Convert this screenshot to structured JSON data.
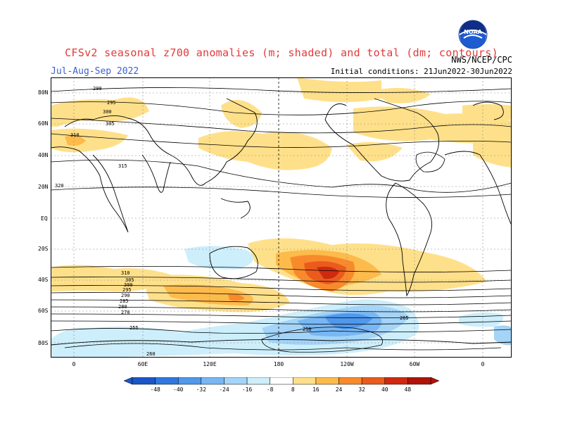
{
  "title": "CFSv2 seasonal z700 anomalies (m; shaded) and total (dm; contours)",
  "agency": "NWS/NCEP/CPC",
  "season": "Jul-Aug-Sep 2022",
  "initial_conditions": "Initial conditions: 21Jun2022-30Jun2022",
  "logo_text": "NOAA",
  "lat_labels": [
    "80N",
    "60N",
    "40N",
    "20N",
    "EQ",
    "20S",
    "40S",
    "60S",
    "80S"
  ],
  "lon_labels": [
    "0",
    "60E",
    "120E",
    "180",
    "120W",
    "60W",
    "0"
  ],
  "colorbar": {
    "labels": [
      "-48",
      "-40",
      "-32",
      "-24",
      "-16",
      "-8",
      "8",
      "16",
      "24",
      "32",
      "40",
      "48"
    ],
    "colors": [
      "#1a57c8",
      "#2f78de",
      "#4f98ec",
      "#78b7f4",
      "#a4d4f8",
      "#cdeefb",
      "#ffffff",
      "#ffe08a",
      "#fdbb4c",
      "#f88a2c",
      "#ea5b1c",
      "#cf2a10",
      "#b01408"
    ]
  },
  "contour_labels": [
    "290",
    "295",
    "300",
    "305",
    "310",
    "315",
    "320",
    "310",
    "305",
    "300",
    "295",
    "290",
    "285",
    "280",
    "270",
    "265",
    "260",
    "255",
    "250"
  ],
  "colors": {
    "title": "#e23a3a",
    "season": "#3a5fd6",
    "coast": "#000000",
    "contour": "#000000"
  }
}
